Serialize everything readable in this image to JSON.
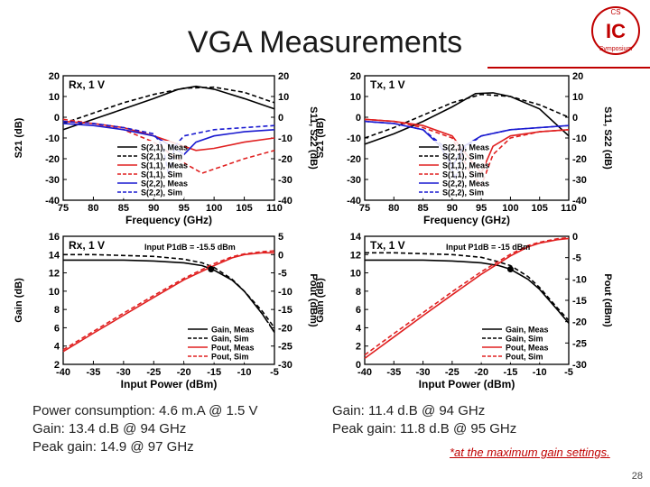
{
  "slide": {
    "title": "VGA Measurements",
    "page_number": "28",
    "logo_top": "CS",
    "logo_main": "IC",
    "logo_bottom": "Symposium",
    "footnote": "*at the maximum gain settings."
  },
  "captions": {
    "rx": [
      "Power consumption: 4.6 m.A @ 1.5 V",
      "Gain: 13.4 d.B @ 94 GHz",
      "Peak gain: 14.9 @ 97 GHz"
    ],
    "tx": [
      "Gain: 11.4 d.B @ 94 GHz",
      "Peak gain: 11.8 d.B @ 95 GHz"
    ]
  },
  "colors": {
    "meas_black": "#000000",
    "red": "#e02020",
    "blue": "#1a1ad0",
    "accent": "#c00000"
  },
  "chart_data": [
    {
      "id": "rx_sparam",
      "type": "line",
      "panel_label": "Rx, 1 V",
      "xlabel": "Frequency (GHz)",
      "ylabel_left": "S21 (dB)",
      "ylabel_right": "S11, S22 (dB)",
      "xlim": [
        75,
        110
      ],
      "xticks": [
        75,
        80,
        85,
        90,
        95,
        100,
        105,
        110
      ],
      "ylim_left": [
        -40,
        20
      ],
      "yticks_left": [
        20,
        10,
        0,
        -10,
        -20,
        -30,
        -40
      ],
      "ylim_right": [
        -40,
        20
      ],
      "yticks_right": [
        20,
        10,
        0,
        -10,
        -20,
        -30,
        -40
      ],
      "series": [
        {
          "name": "S(2,1), Meas",
          "color": "#000000",
          "dash": false,
          "axis": "left",
          "x": [
            75,
            80,
            85,
            90,
            94,
            97,
            100,
            105,
            110
          ],
          "y": [
            -6,
            -1,
            4,
            9,
            13.4,
            14.9,
            13.5,
            9,
            4
          ]
        },
        {
          "name": "S(2,1), Sim",
          "color": "#000000",
          "dash": true,
          "axis": "left",
          "x": [
            75,
            80,
            85,
            90,
            95,
            100,
            105,
            110
          ],
          "y": [
            -3,
            2,
            7,
            11,
            14,
            14.5,
            12,
            7
          ]
        },
        {
          "name": "S(1,1), Meas",
          "color": "#e02020",
          "dash": false,
          "axis": "right",
          "x": [
            75,
            80,
            85,
            90,
            94,
            97,
            100,
            105,
            110
          ],
          "y": [
            -2,
            -3,
            -5,
            -9,
            -13,
            -16,
            -15,
            -12,
            -10
          ]
        },
        {
          "name": "S(1,1), Sim",
          "color": "#e02020",
          "dash": true,
          "axis": "right",
          "x": [
            75,
            80,
            85,
            90,
            95,
            98,
            101,
            105,
            110
          ],
          "y": [
            -1,
            -3,
            -6,
            -12,
            -22,
            -27,
            -24,
            -20,
            -16
          ]
        },
        {
          "name": "S(2,2), Meas",
          "color": "#1a1ad0",
          "dash": false,
          "axis": "right",
          "x": [
            75,
            80,
            85,
            90,
            93,
            95,
            97,
            100,
            105,
            110
          ],
          "y": [
            -3,
            -4,
            -6,
            -9,
            -14,
            -18,
            -12,
            -9,
            -7,
            -6
          ]
        },
        {
          "name": "S(2,2), Sim",
          "color": "#1a1ad0",
          "dash": true,
          "axis": "right",
          "x": [
            75,
            80,
            85,
            90,
            91.5,
            92.5,
            93.5,
            95,
            100,
            105,
            110
          ],
          "y": [
            -2,
            -3,
            -5,
            -8,
            -14,
            -28,
            -14,
            -9,
            -6,
            -5,
            -4
          ]
        }
      ]
    },
    {
      "id": "tx_sparam",
      "type": "line",
      "panel_label": "Tx, 1 V",
      "xlabel": "Frequency (GHz)",
      "ylabel_left": "S21 (dB)",
      "ylabel_right": "S11, S22 (dB)",
      "xlim": [
        75,
        110
      ],
      "xticks": [
        75,
        80,
        85,
        90,
        95,
        100,
        105,
        110
      ],
      "ylim_left": [
        -40,
        20
      ],
      "yticks_left": [
        20,
        10,
        0,
        -10,
        -20,
        -30,
        -40
      ],
      "ylim_right": [
        -40,
        20
      ],
      "yticks_right": [
        20,
        10,
        0,
        -10,
        -20,
        -30,
        -40
      ],
      "series": [
        {
          "name": "S(2,1), Meas",
          "color": "#000000",
          "dash": false,
          "axis": "left",
          "x": [
            75,
            80,
            85,
            90,
            94,
            97,
            100,
            105,
            110
          ],
          "y": [
            -13,
            -8,
            -2,
            5,
            11.4,
            11.8,
            10,
            4,
            -9
          ]
        },
        {
          "name": "S(2,1), Sim",
          "color": "#000000",
          "dash": true,
          "axis": "left",
          "x": [
            75,
            80,
            85,
            90,
            95,
            100,
            105,
            110
          ],
          "y": [
            -10,
            -5,
            1,
            7,
            11,
            10,
            6,
            0
          ]
        },
        {
          "name": "S(1,1), Meas",
          "color": "#e02020",
          "dash": false,
          "axis": "right",
          "x": [
            75,
            80,
            85,
            90,
            93,
            95,
            97,
            100,
            105,
            110
          ],
          "y": [
            -1,
            -2,
            -4,
            -9,
            -20,
            -27,
            -14,
            -9,
            -7,
            -6
          ]
        },
        {
          "name": "S(1,1), Sim",
          "color": "#e02020",
          "dash": true,
          "axis": "right",
          "x": [
            75,
            80,
            85,
            90,
            93,
            95,
            97,
            100,
            105,
            110
          ],
          "y": [
            -1,
            -2,
            -5,
            -10,
            -26,
            -33,
            -18,
            -10,
            -7,
            -6
          ]
        },
        {
          "name": "S(2,2), Meas",
          "color": "#1a1ad0",
          "dash": false,
          "axis": "right",
          "x": [
            75,
            80,
            85,
            88,
            90,
            92,
            95,
            100,
            105,
            110
          ],
          "y": [
            -2,
            -3,
            -6,
            -14,
            -24,
            -14,
            -9,
            -6,
            -5,
            -4
          ]
        },
        {
          "name": "S(2,2), Sim",
          "color": "#1a1ad0",
          "dash": true,
          "axis": "right",
          "x": [
            75,
            80,
            85,
            89,
            90.5,
            92,
            95,
            100,
            105,
            110
          ],
          "y": [
            -2,
            -3,
            -6,
            -15,
            -30,
            -15,
            -9,
            -6,
            -5,
            -4
          ]
        }
      ]
    },
    {
      "id": "rx_power",
      "type": "line",
      "panel_label": "Rx, 1 V",
      "annotation": "Input P1dB = -15.5 dBm",
      "xlabel": "Input Power (dBm)",
      "ylabel_left": "Gain (dB)",
      "ylabel_right": "Pout (dBm)",
      "xlim": [
        -40,
        -5
      ],
      "xticks": [
        -40,
        -35,
        -30,
        -25,
        -20,
        -15,
        -10,
        -5
      ],
      "ylim_left": [
        2,
        16
      ],
      "yticks_left": [
        16,
        14,
        12,
        10,
        8,
        6,
        4,
        2
      ],
      "ylim_right": [
        -30,
        5
      ],
      "yticks_right": [
        5,
        0,
        -5,
        -10,
        -15,
        -20,
        -25,
        -30
      ],
      "marker": {
        "axis": "left",
        "x": -15.5,
        "y": 12.4
      },
      "series": [
        {
          "name": "Gain, Meas",
          "color": "#000000",
          "dash": false,
          "axis": "left",
          "x": [
            -40,
            -35,
            -30,
            -25,
            -20,
            -17,
            -15,
            -12,
            -10,
            -7,
            -5
          ],
          "y": [
            13.4,
            13.4,
            13.4,
            13.3,
            13.1,
            12.8,
            12.3,
            11.2,
            10.0,
            7.5,
            5.5
          ]
        },
        {
          "name": "Gain, Sim",
          "color": "#000000",
          "dash": true,
          "axis": "left",
          "x": [
            -40,
            -35,
            -30,
            -25,
            -20,
            -17,
            -15,
            -12,
            -10,
            -7,
            -5
          ],
          "y": [
            14.0,
            14.0,
            13.9,
            13.8,
            13.5,
            13.1,
            12.6,
            11.3,
            10.0,
            7.8,
            6.0
          ]
        },
        {
          "name": "Pout, Meas",
          "color": "#e02020",
          "dash": false,
          "axis": "right",
          "x": [
            -40,
            -35,
            -30,
            -25,
            -20,
            -15,
            -12,
            -10,
            -7,
            -5
          ],
          "y": [
            -26.5,
            -21.5,
            -16.6,
            -11.7,
            -6.9,
            -3.0,
            -0.9,
            0.0,
            0.5,
            0.5
          ]
        },
        {
          "name": "Pout, Sim",
          "color": "#e02020",
          "dash": true,
          "axis": "right",
          "x": [
            -40,
            -35,
            -30,
            -25,
            -20,
            -15,
            -12,
            -10,
            -7,
            -5
          ],
          "y": [
            -26,
            -21,
            -16,
            -11.2,
            -6.5,
            -2.5,
            -0.6,
            0.2,
            0.8,
            1.0
          ]
        }
      ]
    },
    {
      "id": "tx_power",
      "type": "line",
      "panel_label": "Tx, 1 V",
      "annotation": "Input P1dB = -15 dBm",
      "xlabel": "Input Power (dBm)",
      "ylabel_left": "Gain (dB)",
      "ylabel_right": "Pout (dBm)",
      "xlim": [
        -40,
        -5
      ],
      "xticks": [
        -40,
        -35,
        -30,
        -25,
        -20,
        -15,
        -10,
        -5
      ],
      "ylim_left": [
        0,
        14
      ],
      "yticks_left": [
        14,
        12,
        10,
        8,
        6,
        4,
        2,
        0
      ],
      "ylim_right": [
        -30,
        0
      ],
      "yticks_right": [
        0,
        -5,
        -10,
        -15,
        -20,
        -25,
        -30
      ],
      "marker": {
        "axis": "left",
        "x": -15,
        "y": 10.4
      },
      "series": [
        {
          "name": "Gain, Meas",
          "color": "#000000",
          "dash": false,
          "axis": "left",
          "x": [
            -40,
            -35,
            -30,
            -25,
            -20,
            -17,
            -15,
            -12,
            -10,
            -7,
            -5
          ],
          "y": [
            11.4,
            11.4,
            11.4,
            11.3,
            11.1,
            10.8,
            10.4,
            9.3,
            8.2,
            6.0,
            4.5
          ]
        },
        {
          "name": "Gain, Sim",
          "color": "#000000",
          "dash": true,
          "axis": "left",
          "x": [
            -40,
            -35,
            -30,
            -25,
            -20,
            -17,
            -15,
            -12,
            -10,
            -7,
            -5
          ],
          "y": [
            12.2,
            12.2,
            12.1,
            12.0,
            11.7,
            11.2,
            10.8,
            9.6,
            8.4,
            6.2,
            4.8
          ]
        },
        {
          "name": "Pout, Meas",
          "color": "#e02020",
          "dash": false,
          "axis": "right",
          "x": [
            -40,
            -35,
            -30,
            -25,
            -20,
            -15,
            -12,
            -10,
            -7,
            -5
          ],
          "y": [
            -28.6,
            -23.6,
            -18.6,
            -13.7,
            -8.9,
            -4.6,
            -2.5,
            -1.6,
            -0.8,
            -0.5
          ]
        },
        {
          "name": "Pout, Sim",
          "color": "#e02020",
          "dash": true,
          "axis": "right",
          "x": [
            -40,
            -35,
            -30,
            -25,
            -20,
            -15,
            -12,
            -10,
            -7,
            -5
          ],
          "y": [
            -27.8,
            -22.8,
            -17.9,
            -13.0,
            -8.3,
            -4.2,
            -2.2,
            -1.4,
            -0.6,
            -0.3
          ]
        }
      ]
    }
  ]
}
